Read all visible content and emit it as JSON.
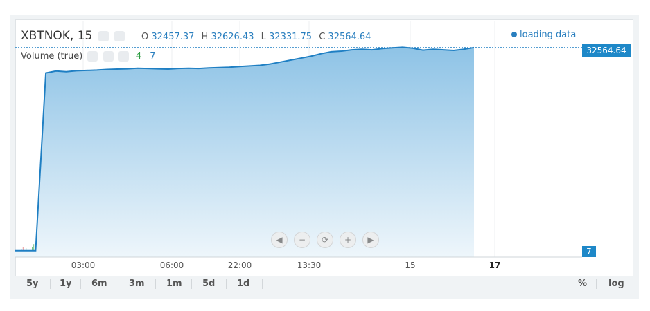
{
  "header": {
    "symbol": "XBTNOK, 15",
    "open_label": "O",
    "open": "32457.37",
    "high_label": "H",
    "high": "32626.43",
    "low_label": "L",
    "low": "32331.75",
    "close_label": "C",
    "close": "32564.64"
  },
  "volume_legend": {
    "label": "Volume (true)",
    "up": "4",
    "down": "7"
  },
  "status": {
    "loading": "loading data"
  },
  "price_tag": "32564.64",
  "volume_tag": "7",
  "toolbar": {
    "ranges": [
      "5y",
      "1y",
      "6m",
      "3m",
      "1m",
      "5d",
      "1d"
    ],
    "percent": "%",
    "log": "log"
  },
  "colors": {
    "line": "#1f7fc3",
    "fill_top": "#8ec3e6",
    "fill_bottom": "#eef6fb",
    "vol_up": "#3aa655",
    "vol_down": "#e06b6b",
    "accent": "#1e88c8"
  },
  "chart_data": {
    "type": "area",
    "xlabels": [
      "03:00",
      "06:00",
      "22:00",
      "13:30",
      "15",
      "17"
    ],
    "series": [
      {
        "values": [
          1000,
          1000,
          1000,
          28600,
          28900,
          28800,
          28950,
          29000,
          29050,
          29150,
          29200,
          29250,
          29350,
          29300,
          29250,
          29200,
          29300,
          29350,
          29300,
          29400,
          29450,
          29500,
          29600,
          29700,
          29800,
          30000,
          30300,
          30600,
          30900,
          31200,
          31600,
          31900,
          32000,
          32200,
          32300,
          32200,
          32400,
          32500,
          32600,
          32450,
          32150,
          32300,
          32200,
          32100,
          32300,
          32560
        ]
      }
    ],
    "ylim": [
      0,
      33500
    ],
    "current_price": 32564.64
  }
}
